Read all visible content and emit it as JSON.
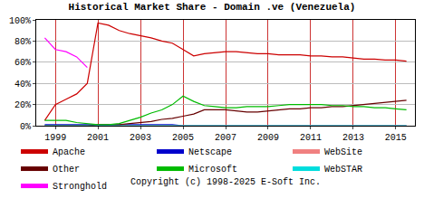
{
  "chart_data": {
    "type": "line",
    "title": "Historical Market Share - Domain .ve (Venezuela)",
    "annotations": [
      "Copyright (c) 1998-2025 E-Soft Inc."
    ],
    "x": [
      1998.5,
      1999,
      1999.5,
      2000,
      2000.5,
      2001,
      2001.5,
      2002,
      2002.5,
      2003,
      2003.5,
      2004,
      2004.5,
      2005,
      2005.5,
      2006,
      2006.5,
      2007,
      2007.5,
      2008,
      2008.5,
      2009,
      2009.5,
      2010,
      2010.5,
      2011,
      2011.5,
      2012,
      2012.5,
      2013,
      2013.5,
      2014,
      2014.5,
      2015,
      2015.5
    ],
    "series": [
      {
        "name": "Apache",
        "color": "#cc0000",
        "values": [
          5,
          20,
          25,
          30,
          40,
          97,
          95,
          90,
          87,
          85,
          83,
          80,
          78,
          72,
          66,
          68,
          69,
          70,
          70,
          69,
          68,
          68,
          67,
          67,
          67,
          66,
          66,
          65,
          65,
          64,
          63,
          63,
          62,
          62,
          61
        ]
      },
      {
        "name": "Netscape",
        "color": "#0000cc",
        "values": [
          1,
          1,
          1,
          1,
          1,
          1,
          1,
          1,
          1,
          1,
          1,
          1,
          1,
          0,
          0,
          0,
          0,
          0,
          0,
          0,
          0,
          0,
          0,
          0,
          0,
          0,
          0,
          0,
          0,
          0,
          0,
          0,
          0,
          0,
          0
        ]
      },
      {
        "name": "WebSite",
        "color": "#f08080",
        "values": [
          0,
          0,
          0,
          0,
          0,
          0,
          0,
          0,
          0,
          0,
          0,
          0,
          0,
          0,
          0,
          0,
          0,
          0,
          0,
          0,
          0,
          0,
          0,
          0,
          0,
          0,
          0,
          0,
          0,
          0,
          0,
          0,
          0,
          0,
          0
        ]
      },
      {
        "name": "Other",
        "color": "#660000",
        "values": [
          0,
          0,
          0,
          0,
          0,
          1,
          1,
          1,
          2,
          3,
          4,
          6,
          7,
          9,
          11,
          15,
          15,
          15,
          14,
          13,
          13,
          14,
          15,
          16,
          16,
          17,
          17,
          18,
          18,
          19,
          20,
          21,
          22,
          23,
          24
        ]
      },
      {
        "name": "Microsoft",
        "color": "#00bb00",
        "values": [
          5,
          5,
          5,
          3,
          2,
          1,
          1,
          2,
          5,
          8,
          12,
          15,
          20,
          28,
          23,
          19,
          18,
          17,
          17,
          18,
          18,
          18,
          19,
          20,
          20,
          20,
          20,
          19,
          19,
          18,
          18,
          17,
          17,
          16,
          15
        ]
      },
      {
        "name": "WebSTAR",
        "color": "#00dddd",
        "values": [
          0,
          0,
          0,
          0,
          0,
          0,
          0,
          0,
          0,
          0,
          0,
          0,
          0,
          0,
          0,
          0,
          0,
          0,
          0,
          0,
          0,
          0,
          0,
          0,
          0,
          0,
          0,
          0,
          0,
          0,
          0,
          0,
          0,
          0,
          0
        ]
      },
      {
        "name": "Stronghold",
        "color": "#ff00ff",
        "values": [
          83,
          72,
          70,
          65,
          55,
          null,
          null,
          null,
          null,
          null,
          null,
          null,
          null,
          null,
          null,
          null,
          null,
          null,
          null,
          null,
          null,
          null,
          null,
          null,
          null,
          null,
          null,
          null,
          null,
          null,
          null,
          null,
          null,
          null,
          null
        ]
      }
    ],
    "xlim": [
      1998.1,
      2015.9
    ],
    "xticks": [
      1999,
      2001,
      2003,
      2005,
      2007,
      2009,
      2011,
      2013,
      2015
    ],
    "ylim": [
      0,
      100
    ],
    "yticks": [
      {
        "value": 0,
        "label": "0%"
      },
      {
        "value": 20,
        "label": "20%"
      },
      {
        "value": 40,
        "label": "40%"
      },
      {
        "value": 60,
        "label": "60%"
      },
      {
        "value": 80,
        "label": "80%"
      },
      {
        "value": 100,
        "label": "100%"
      }
    ],
    "grid": true,
    "legend": "bottom"
  }
}
